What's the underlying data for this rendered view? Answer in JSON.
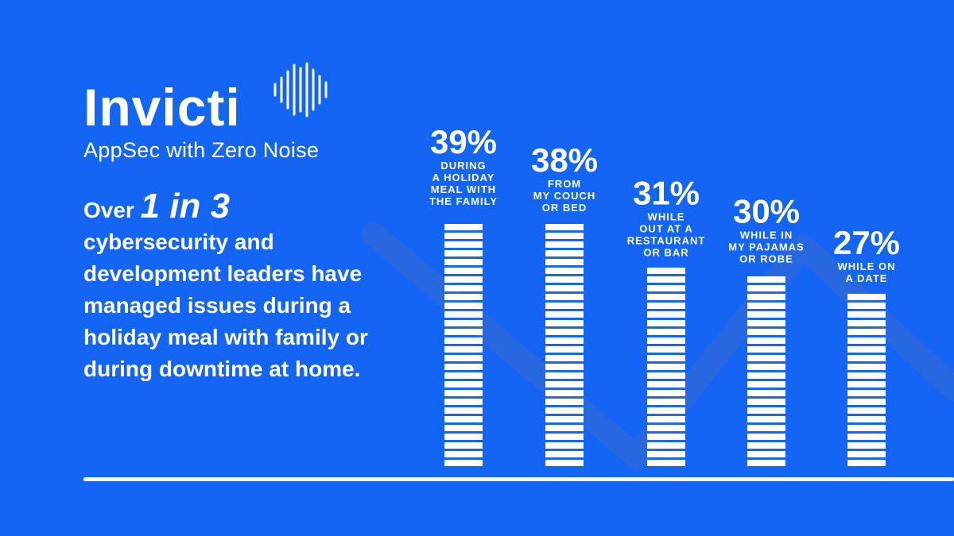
{
  "brand": {
    "name": "Invicti",
    "tagline": "AppSec with Zero Noise",
    "waves_icon": "sound-wave-icon"
  },
  "headline": {
    "prefix": "Over",
    "highlight": "1 in 3",
    "body": "cybersecurity and development leaders have managed issues during a holiday meal with family or during downtime at home."
  },
  "colors": {
    "background": "#1565f5",
    "bar": "#ffffff",
    "decor_line": "#2f6bd8"
  },
  "chart_data": {
    "type": "bar",
    "unit": "%",
    "categories": [
      [
        "DURING",
        "A HOLIDAY",
        "MEAL WITH",
        "THE FAMILY"
      ],
      [
        "FROM",
        "MY COUCH",
        "OR BED"
      ],
      [
        "WHILE",
        "OUT AT A",
        "RESTAURANT",
        "OR BAR"
      ],
      [
        "WHILE IN",
        "MY PAJAMAS",
        "OR ROBE"
      ],
      [
        "WHILE ON",
        "A DATE"
      ]
    ],
    "values": [
      39,
      38,
      31,
      30,
      27
    ],
    "value_labels": [
      "39%",
      "38%",
      "31%",
      "30%",
      "27%"
    ],
    "ylim": [
      0,
      39
    ],
    "grid": false,
    "legend": "none"
  }
}
